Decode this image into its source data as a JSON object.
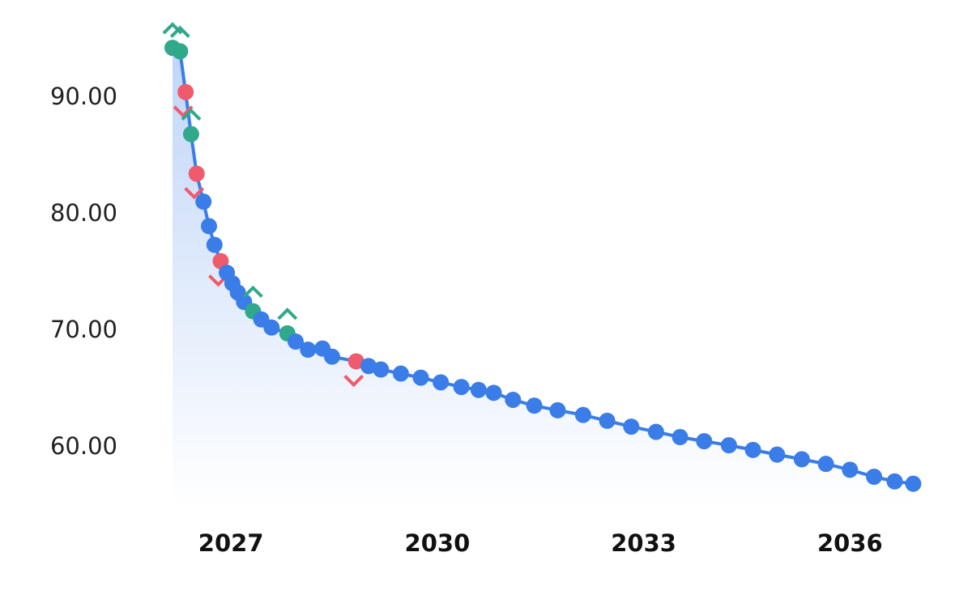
{
  "chart_data": {
    "type": "line",
    "x": [
      2026.15,
      2026.26,
      2026.34,
      2026.42,
      2026.5,
      2026.6,
      2026.68,
      2026.76,
      2026.85,
      2026.94,
      2027.02,
      2027.1,
      2027.19,
      2027.32,
      2027.44,
      2027.59,
      2027.82,
      2027.94,
      2028.12,
      2028.33,
      2028.47,
      2028.82,
      2029.0,
      2029.18,
      2029.47,
      2029.76,
      2030.05,
      2030.35,
      2030.6,
      2030.82,
      2031.1,
      2031.41,
      2031.75,
      2032.12,
      2032.47,
      2032.82,
      2033.18,
      2033.53,
      2033.88,
      2034.24,
      2034.59,
      2034.94,
      2035.3,
      2035.65,
      2036.0,
      2036.35,
      2036.65,
      2036.92
    ],
    "values": [
      94.3,
      94.0,
      90.5,
      86.9,
      83.5,
      81.1,
      79.0,
      77.4,
      76.0,
      75.0,
      74.1,
      73.3,
      72.5,
      71.7,
      71.0,
      70.3,
      69.8,
      69.1,
      68.4,
      68.5,
      67.8,
      67.4,
      67.0,
      66.7,
      66.35,
      66.0,
      65.6,
      65.2,
      64.95,
      64.7,
      64.1,
      63.6,
      63.2,
      62.8,
      62.3,
      61.8,
      61.35,
      60.9,
      60.55,
      60.2,
      59.8,
      59.4,
      59.0,
      58.6,
      58.1,
      57.5,
      57.1,
      56.9
    ],
    "signals": [
      "up",
      "up",
      "down",
      "up",
      "down",
      null,
      null,
      null,
      "down",
      null,
      null,
      null,
      null,
      "up",
      null,
      null,
      "up",
      null,
      null,
      null,
      null,
      "down",
      null,
      null,
      null,
      null,
      null,
      null,
      null,
      null,
      null,
      null,
      null,
      null,
      null,
      null,
      null,
      null,
      null,
      null,
      null,
      null,
      null,
      null,
      null,
      null,
      null,
      null
    ],
    "color": "#3a7de8",
    "up_color": "#2fa98a",
    "down_color": "#ef5a6c",
    "xlim": [
      2026.15,
      2036.95
    ],
    "xticks": [
      2027,
      2030,
      2033,
      2036
    ],
    "ylim": [
      55,
      96
    ],
    "yticks": [
      {
        "value": 60,
        "label": "60.00"
      },
      {
        "value": 70,
        "label": "70.00"
      },
      {
        "value": 80,
        "label": "80.00"
      },
      {
        "value": 90,
        "label": "90.00"
      }
    ],
    "grid": false
  }
}
